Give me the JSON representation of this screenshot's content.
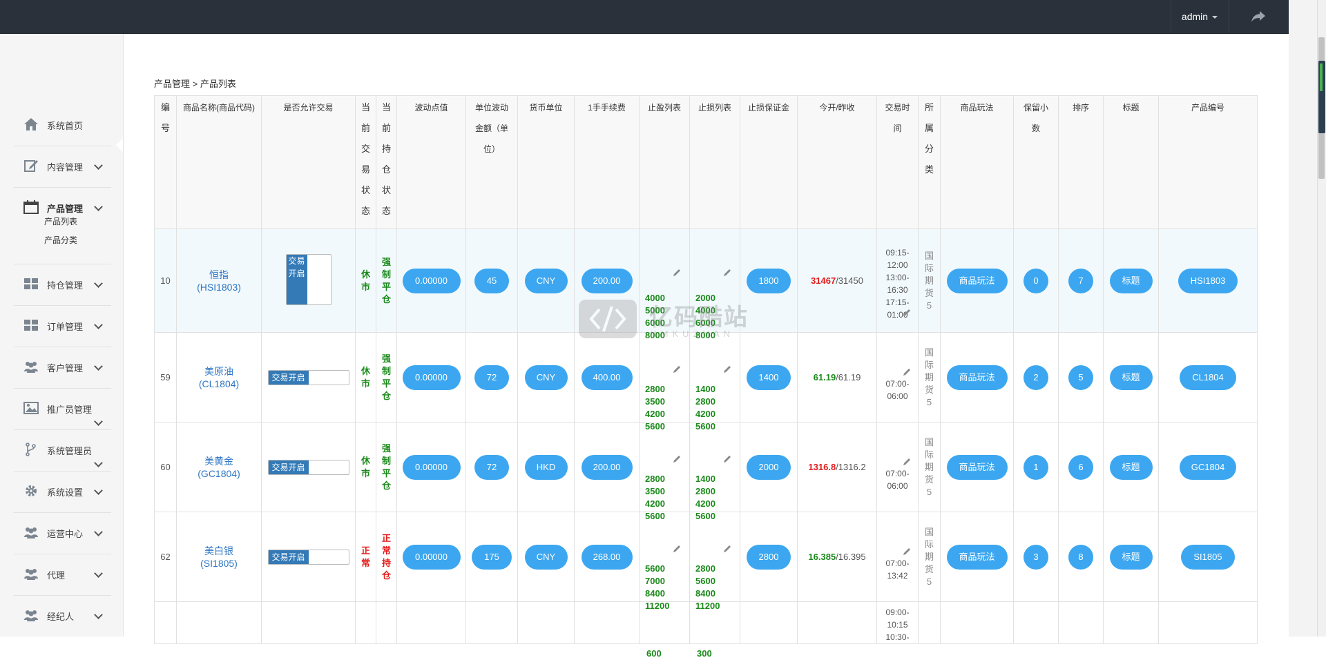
{
  "topbar": {
    "user": "admin"
  },
  "sidebar": {
    "items": [
      {
        "label": "系统首页",
        "icon": "home-icon"
      },
      {
        "label": "内容管理",
        "icon": "edit-icon"
      },
      {
        "label": "产品管理",
        "icon": "calendar-icon"
      },
      {
        "label": "持仓管理",
        "icon": "grid-icon"
      },
      {
        "label": "订单管理",
        "icon": "grid-icon"
      },
      {
        "label": "客户管理",
        "icon": "users-icon"
      },
      {
        "label": "推广员管理",
        "icon": "image-icon"
      },
      {
        "label": "系统管理员",
        "icon": "branch-icon"
      },
      {
        "label": "系统设置",
        "icon": "gear-icon"
      },
      {
        "label": "运营中心",
        "icon": "users-icon"
      },
      {
        "label": "代理",
        "icon": "users-icon"
      },
      {
        "label": "经纪人",
        "icon": "users-icon"
      }
    ],
    "sub_items": [
      "产品列表",
      "产品分类"
    ]
  },
  "breadcrumb": "产品管理 > 产品列表",
  "table": {
    "headers": [
      "编号",
      "商品名称(商品代码)",
      "是否允许交易",
      "当前交易状态",
      "当前持仓状态",
      "波动点值",
      "单位波动金额（单位）",
      "货币单位",
      "1手手续费",
      "止盈列表",
      "止损列表",
      "止损保证金",
      "今开/昨收",
      "交易时间",
      "所属分类",
      "商品玩法",
      "保留小数",
      "排序",
      "标题",
      "产品编号"
    ],
    "rows": [
      {
        "id": "10",
        "name": "恒指",
        "code": "(HSI1803)",
        "toggle": "交易开启",
        "trade_status": "休市",
        "hold_status": "强制平仓",
        "point": "0.00000",
        "unit": "45",
        "currency": "CNY",
        "fee": "200.00",
        "tp": [
          "4000",
          "5000",
          "6000",
          "8000"
        ],
        "sl": [
          "2000",
          "4000",
          "6000",
          "8000"
        ],
        "margin": "1800",
        "open": "31467",
        "close": "/31450",
        "open_color": "red",
        "time": [
          "09:15-",
          "12:00",
          "13:00-",
          "16:30",
          "17:15-",
          "01:00"
        ],
        "category": "国际期货5",
        "play": "商品玩法",
        "decimals": "0",
        "sort": "7",
        "title": "标题",
        "product_no": "HSI1803"
      },
      {
        "id": "59",
        "name": "美原油",
        "code": "(CL1804)",
        "toggle": "交易开启",
        "trade_status": "休市",
        "hold_status": "强制平仓",
        "point": "0.00000",
        "unit": "72",
        "currency": "CNY",
        "fee": "400.00",
        "tp": [
          "2800",
          "3500",
          "4200",
          "5600"
        ],
        "sl": [
          "1400",
          "2800",
          "4200",
          "5600"
        ],
        "margin": "1400",
        "open": "61.19",
        "close": "/61.19",
        "open_color": "green",
        "time": [
          "07:00-",
          "06:00"
        ],
        "category": "国际期货5",
        "play": "商品玩法",
        "decimals": "2",
        "sort": "5",
        "title": "标题",
        "product_no": "CL1804"
      },
      {
        "id": "60",
        "name": "美黄金",
        "code": "(GC1804)",
        "toggle": "交易开启",
        "trade_status": "休市",
        "hold_status": "强制平仓",
        "point": "0.00000",
        "unit": "72",
        "currency": "HKD",
        "fee": "200.00",
        "tp": [
          "2800",
          "3500",
          "4200",
          "5600"
        ],
        "sl": [
          "1400",
          "2800",
          "4200",
          "5600"
        ],
        "margin": "2000",
        "open": "1316.8",
        "close": "/1316.2",
        "open_color": "red",
        "time": [
          "07:00-",
          "06:00"
        ],
        "category": "国际期货5",
        "play": "商品玩法",
        "decimals": "1",
        "sort": "6",
        "title": "标题",
        "product_no": "GC1804"
      },
      {
        "id": "62",
        "name": "美白银",
        "code": "(SI1805)",
        "toggle": "交易开启",
        "trade_status": "正常",
        "hold_status": "正常持仓",
        "point": "0.00000",
        "unit": "175",
        "currency": "CNY",
        "fee": "268.00",
        "tp": [
          "5600",
          "7000",
          "8400",
          "11200"
        ],
        "sl": [
          "2800",
          "5600",
          "8400",
          "11200"
        ],
        "margin": "2800",
        "open": "16.385",
        "close": "/16.395",
        "open_color": "green",
        "time": [
          "07:00-",
          "13:42"
        ],
        "category": "国际期货5",
        "play": "商品玩法",
        "decimals": "3",
        "sort": "8",
        "title": "标题",
        "product_no": "SI1805"
      },
      {
        "tp": [
          "600"
        ],
        "sl": [
          "300"
        ],
        "time": [
          "09:00-",
          "10:15",
          "10:30-"
        ]
      }
    ]
  },
  "watermark": {
    "title": "亿码酷站",
    "sub": "YMKUZHAN"
  }
}
